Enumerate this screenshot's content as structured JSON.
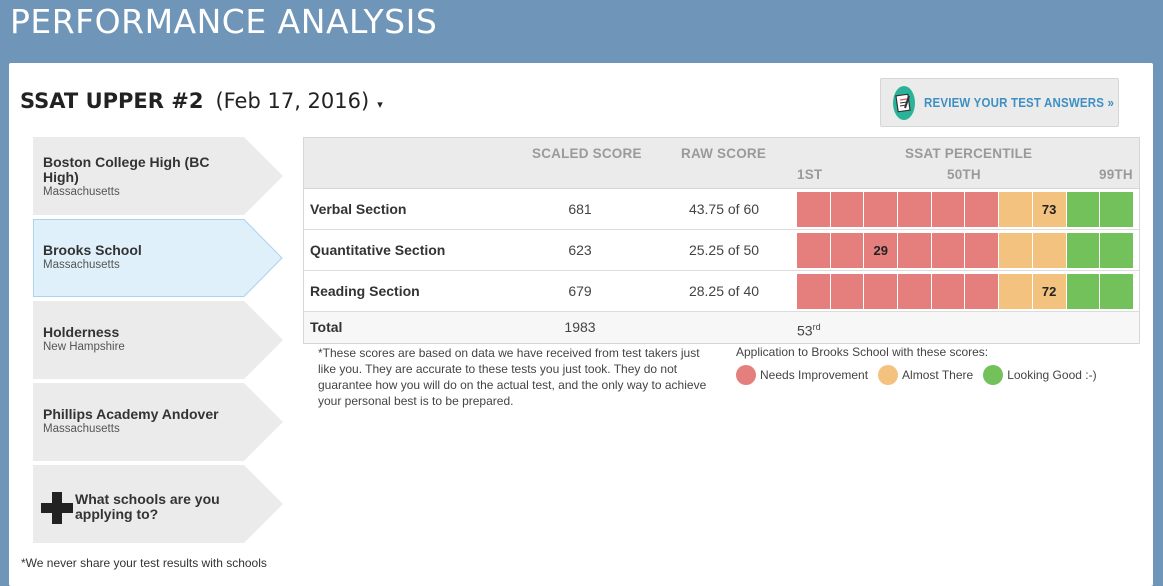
{
  "page_title": "PERFORMANCE ANALYSIS",
  "test": {
    "name": "SSAT UPPER #2",
    "date": "(Feb 17, 2016)",
    "caret": "▾"
  },
  "review_button": {
    "label": "REVIEW YOUR TEST ANSWERS",
    "arrow": "»",
    "icon": "notepad-pencil-icon"
  },
  "schools": [
    {
      "name": "Boston College High (BC High)",
      "state": "Massachusetts",
      "selected": false
    },
    {
      "name": "Brooks School",
      "state": "Massachusetts",
      "selected": true
    },
    {
      "name": "Holderness",
      "state": "New Hampshire",
      "selected": false
    },
    {
      "name": "Phillips Academy Andover",
      "state": "Massachusetts",
      "selected": false
    }
  ],
  "add_school": {
    "label": "What schools are you applying to?",
    "icon": "plus-icon"
  },
  "footer_note": "*We never share your test results with schools",
  "table": {
    "headers": {
      "scaled": "SCALED SCORE",
      "raw": "RAW SCORE",
      "percentile": "SSAT PERCENTILE"
    },
    "scale_labels": {
      "low": "1ST",
      "mid": "50TH",
      "high": "99TH"
    },
    "rows": [
      {
        "section": "Verbal Section",
        "scaled": "681",
        "raw": "43.75 of 60",
        "percentile": "73",
        "marker_index": 7
      },
      {
        "section": "Quantitative Section",
        "scaled": "623",
        "raw": "25.25 of 50",
        "percentile": "29",
        "marker_index": 2
      },
      {
        "section": "Reading Section",
        "scaled": "679",
        "raw": "28.25 of 40",
        "percentile": "72",
        "marker_index": 7
      }
    ],
    "segment_colors": [
      "red",
      "red",
      "red",
      "red",
      "red",
      "red",
      "orange",
      "orange",
      "green",
      "green"
    ],
    "total": {
      "label": "Total",
      "scaled": "1983",
      "percentile": "53",
      "percentile_suffix": "rd"
    }
  },
  "disclaimer": "*These scores are based on data we have received from test takers just like you. They are accurate to these tests you just took. They do not guarantee how you will do on the actual test, and the only way to achieve your personal best is to be prepared.",
  "legend": {
    "title": "Application to Brooks School with these scores:",
    "items": [
      {
        "label": "Needs Improvement",
        "color": "#e47f7d"
      },
      {
        "label": "Almost There",
        "color": "#f4c27f"
      },
      {
        "label": "Looking Good :-)",
        "color": "#72c15b"
      }
    ]
  },
  "colors": {
    "red": "#e47f7d",
    "orange": "#f4c27f",
    "green": "#72c15b",
    "selected_bg": "#dff0fb",
    "default_bg": "#ebebeb",
    "selected_border": "#a9d3ee"
  }
}
